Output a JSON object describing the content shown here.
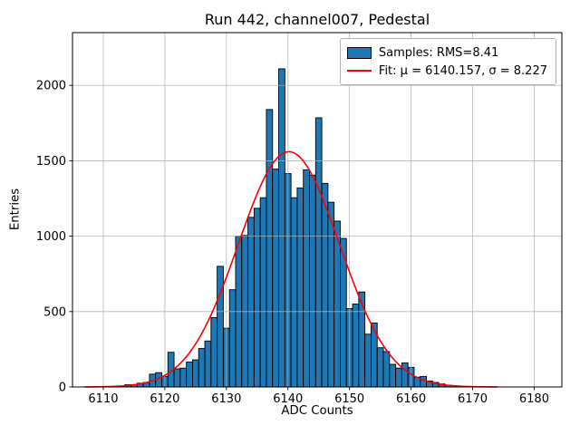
{
  "title": "Run 442, channel007, Pedestal",
  "xlabel": "ADC Counts",
  "ylabel": "Entries",
  "legend": {
    "samples_label": "Samples: RMS=8.41",
    "fit_label": "Fit: μ = 6140.157, σ = 8.227"
  },
  "colors": {
    "bar_fill": "#1f77b4",
    "bar_edge": "#000000",
    "fit_line": "#ff0000",
    "grid": "#b0b0b0",
    "axes": "#000000"
  },
  "chart_data": {
    "type": "bar",
    "subtype": "histogram",
    "title": "Run 442, channel007, Pedestal",
    "xlabel": "ADC Counts",
    "ylabel": "Entries",
    "bin_start": 6113.5,
    "bin_width": 1,
    "values": [
      15,
      15,
      25,
      30,
      85,
      95,
      70,
      230,
      120,
      125,
      165,
      180,
      255,
      305,
      460,
      800,
      390,
      645,
      1000,
      1005,
      1125,
      1185,
      1255,
      1840,
      1445,
      2110,
      1415,
      1255,
      1320,
      1440,
      1405,
      1785,
      1350,
      1225,
      1100,
      985,
      520,
      550,
      630,
      350,
      425,
      260,
      235,
      150,
      125,
      160,
      130,
      65,
      70,
      40,
      30,
      20,
      12
    ],
    "fit": {
      "mu": 6140.157,
      "sigma": 8.227,
      "amplitude": 1560,
      "x_range": [
        6107,
        6174
      ]
    },
    "xlim": [
      6105,
      6184.5
    ],
    "ylim": [
      0,
      2350
    ],
    "xticks": [
      6110,
      6120,
      6130,
      6140,
      6150,
      6160,
      6170,
      6180
    ],
    "yticks": [
      0,
      500,
      1000,
      1500,
      2000
    ],
    "grid": true,
    "legend_position": "upper right"
  }
}
